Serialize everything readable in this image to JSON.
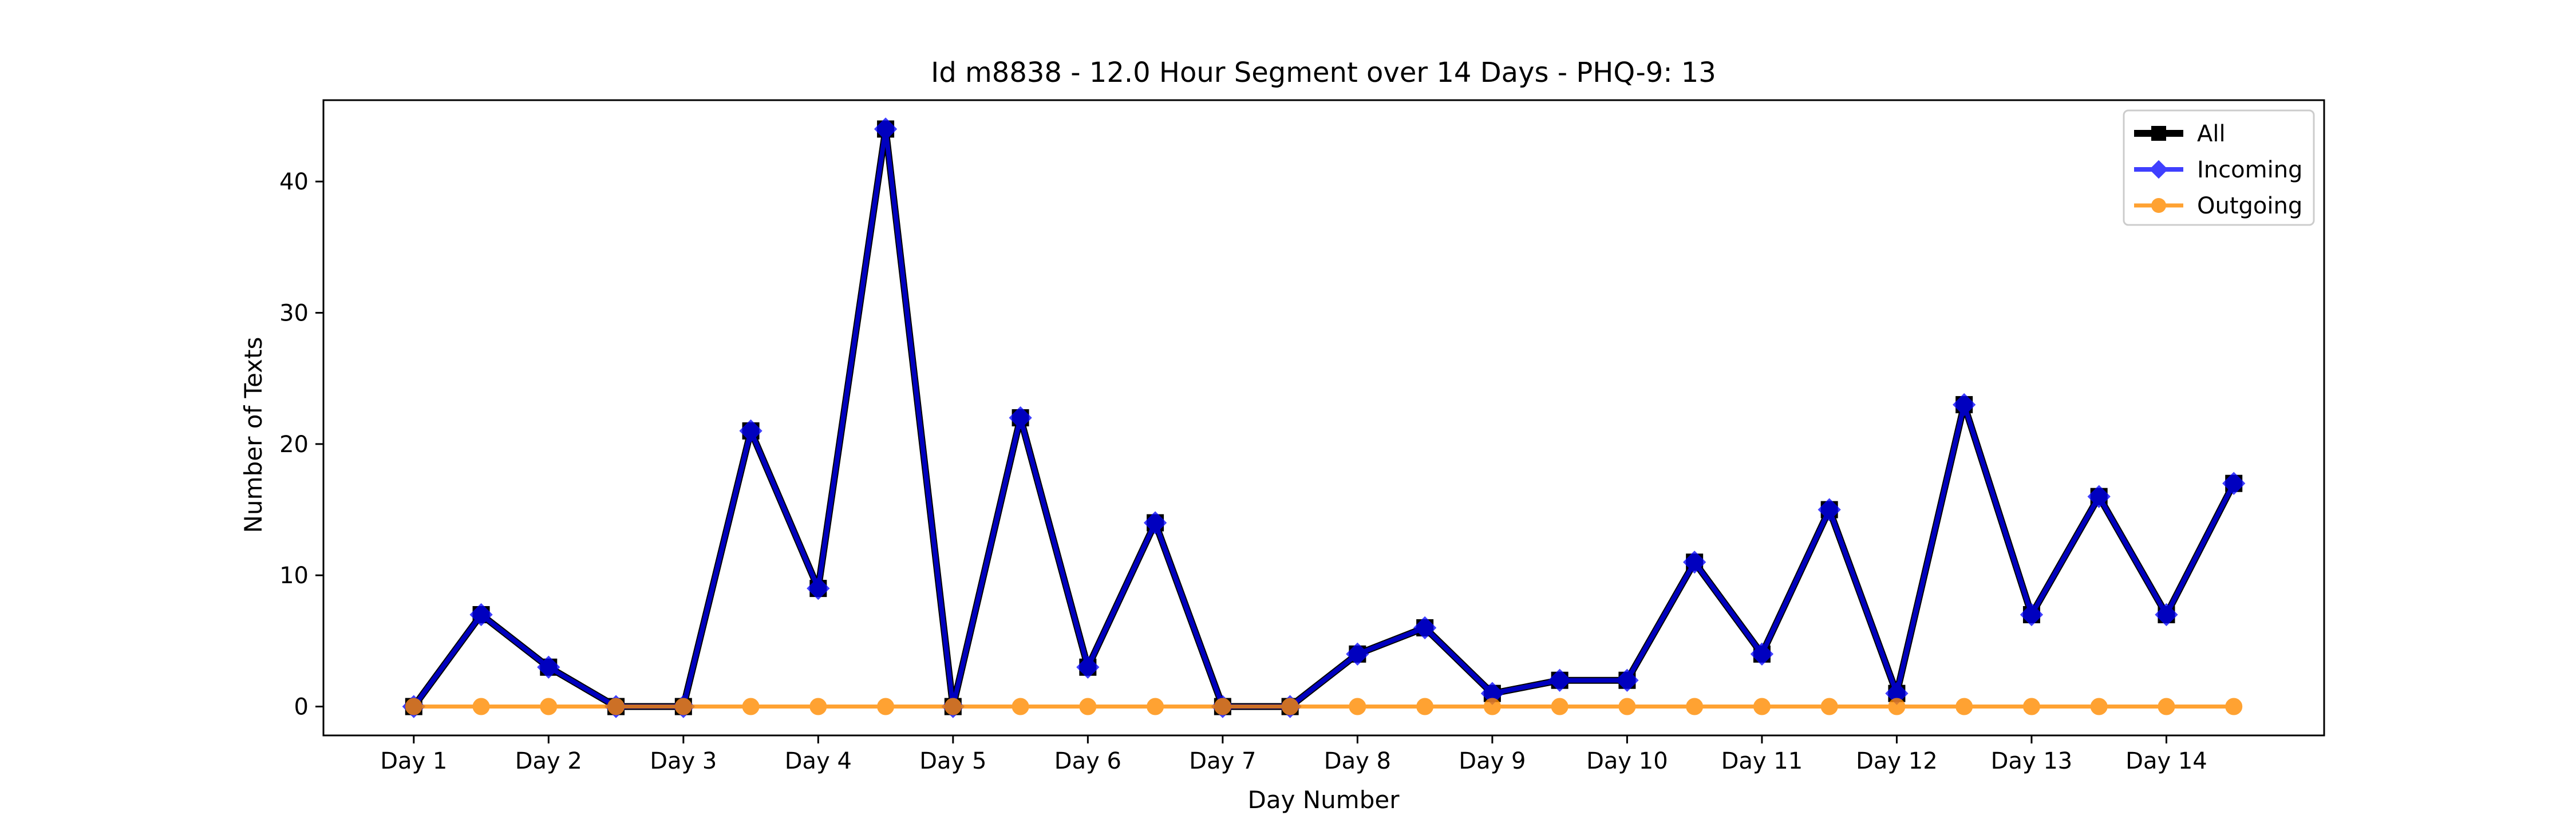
{
  "chart_data": {
    "type": "line",
    "title": "Id m8838 - 12.0 Hour Segment over 14 Days - PHQ-9: 13",
    "xlabel": "Day Number",
    "ylabel": "Number of Texts",
    "x": [
      1,
      1.5,
      2,
      2.5,
      3,
      3.5,
      4,
      4.5,
      5,
      5.5,
      6,
      6.5,
      7,
      7.5,
      8,
      8.5,
      9,
      9.5,
      10,
      10.5,
      11,
      11.5,
      12,
      12.5,
      13,
      13.5,
      14,
      14.5
    ],
    "xlim": [
      0.33,
      15.17
    ],
    "ylim": [
      -2.2,
      46.2
    ],
    "xtick_values": [
      1,
      2,
      3,
      4,
      5,
      6,
      7,
      8,
      9,
      10,
      11,
      12,
      13,
      14
    ],
    "xtick_labels": [
      "Day 1",
      "Day 2",
      "Day 3",
      "Day 4",
      "Day 5",
      "Day 6",
      "Day 7",
      "Day 8",
      "Day 9",
      "Day 10",
      "Day 11",
      "Day 12",
      "Day 13",
      "Day 14"
    ],
    "yticks": [
      0,
      10,
      20,
      30,
      40
    ],
    "ytick_labels": [
      "0",
      "10",
      "20",
      "30",
      "40"
    ],
    "grid": false,
    "legend_position": "top-right",
    "series": [
      {
        "name": "All",
        "color": "#000000",
        "marker": "square",
        "values": [
          0,
          7,
          3,
          0,
          0,
          21,
          9,
          44,
          0,
          22,
          3,
          14,
          0,
          0,
          4,
          6,
          1,
          2,
          2,
          11,
          4,
          15,
          1,
          23,
          7,
          16,
          7,
          17
        ]
      },
      {
        "name": "Incoming",
        "color": "#0000ff",
        "marker": "diamond",
        "values": [
          0,
          7,
          3,
          0,
          0,
          21,
          9,
          44,
          0,
          22,
          3,
          14,
          0,
          0,
          4,
          6,
          1,
          2,
          2,
          11,
          4,
          15,
          1,
          23,
          7,
          16,
          7,
          17
        ]
      },
      {
        "name": "Outgoing",
        "color": "#ff8c00",
        "marker": "circle",
        "values": [
          0,
          0,
          0,
          0,
          0,
          0,
          0,
          0,
          0,
          0,
          0,
          0,
          0,
          0,
          0,
          0,
          0,
          0,
          0,
          0,
          0,
          0,
          0,
          0,
          0,
          0,
          0,
          0
        ]
      }
    ]
  }
}
